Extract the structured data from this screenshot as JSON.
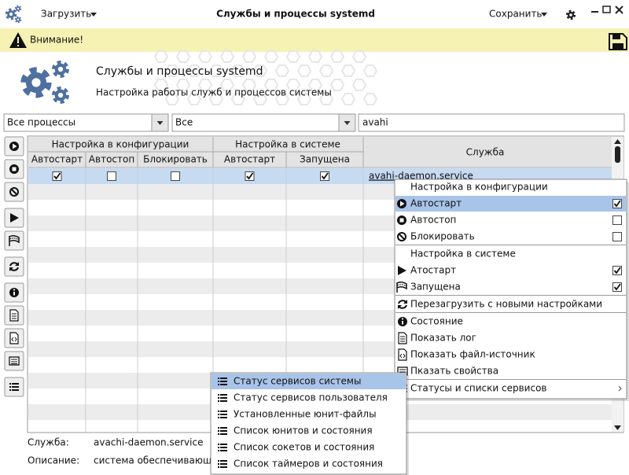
{
  "titlebar": {
    "load": "Загрузить",
    "title": "Службы и процессы systemd",
    "save": "Сохранить"
  },
  "warning": "Внимание!",
  "header": {
    "title": "Службы и процессы systemd",
    "subtitle": "Настройка работы служб и процессов системы"
  },
  "filters": {
    "process": "Все процессы",
    "state": "Все",
    "search": "avahi"
  },
  "table": {
    "groups": [
      "Настройка в конфигурации",
      "Настройка в системе"
    ],
    "service_header": "Служба",
    "columns": [
      "Автостарт",
      "Автостоп",
      "Блокировать",
      "Автостарт",
      "Запущена"
    ],
    "rows": [
      {
        "flags": [
          true,
          false,
          false,
          true,
          true
        ],
        "service": "avahi-daemon.service"
      }
    ]
  },
  "context_menu": {
    "groups": [
      {
        "title": "Настройка в конфигурации",
        "items": [
          {
            "label": "Автостарт",
            "checked": true
          },
          {
            "label": "Автостоп",
            "checked": false
          },
          {
            "label": "Блокировать",
            "checked": false
          }
        ]
      },
      {
        "title": "Настройка в системе",
        "items": [
          {
            "label": "Атостарт",
            "checked": true
          },
          {
            "label": "Запущена",
            "checked": true
          }
        ]
      }
    ],
    "actions": [
      [
        "Перезагрузить с новыми настройками"
      ],
      [
        "Состояние",
        "Показать лог",
        "Показать файл-источник",
        "Пказать свойства"
      ],
      [
        "Статусы и списки сервисов"
      ]
    ]
  },
  "submenu": [
    "Статус сервисов системы",
    "Статус сервисов пользователя",
    "Установленные юнит-файлы",
    "Список юнитов и состояния",
    "Список сокетов и состояния",
    "Список таймеров и состояния"
  ],
  "details": {
    "service_label": "Служба:",
    "service": "avachi-daemon.service",
    "description_label": "Описание:",
    "description": "система обеспечивающая"
  }
}
